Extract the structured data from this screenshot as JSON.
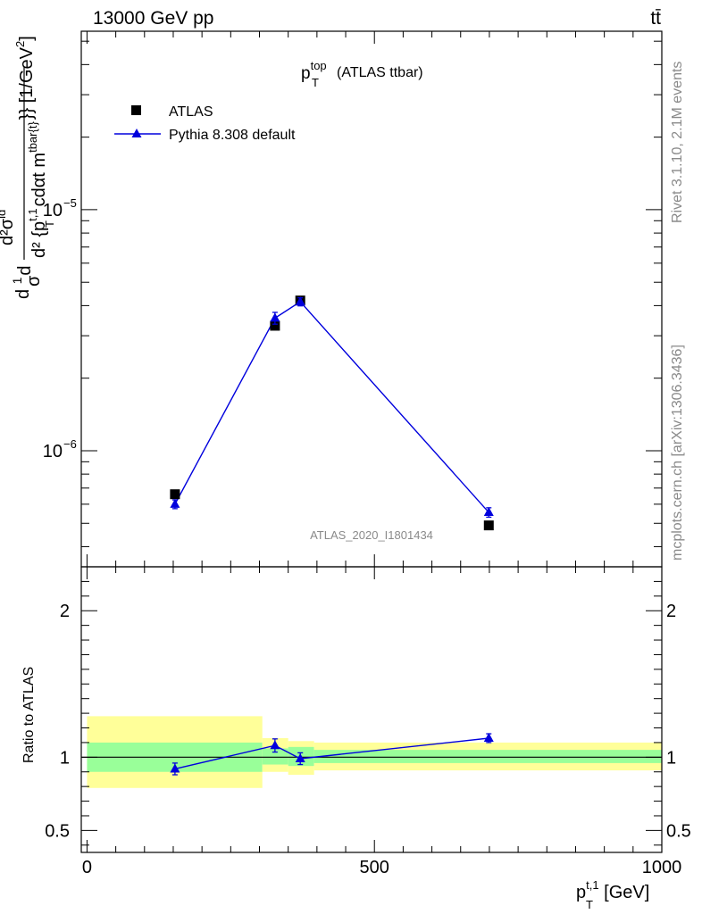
{
  "header": {
    "energy": "13000 GeV pp",
    "process": "tt̄"
  },
  "side": {
    "rivet": "Rivet 3.1.10,  2.1M events",
    "mcplots": "mcplots.cern.ch [arXiv:1306.3436]"
  },
  "colors": {
    "data": "#000000",
    "mc": "#0000dd",
    "band_green": "#99ff99",
    "band_yellow": "#ffff99",
    "watermark": "#8a8a8a"
  },
  "chart_data": [
    {
      "type": "scatter",
      "panel": "main",
      "title_main": "p",
      "title_sup": "top",
      "title_sub": "T",
      "title_tail": "(ATLAS ttbar)",
      "watermark": "ATLAS_2020_I1801434",
      "ylabel": "d¹/σ d²σᴵᵈ / d² {p_T^{t,1} cdαt m^{tbar{t}}} [1/GeV²]",
      "ylabel_parts": {
        "a": "d",
        "b": "1",
        "c": "σ",
        "d": "d",
        "num": "d²σ",
        "num_sup": "id",
        "den": "d² {p",
        "den_sup": "t,1",
        "den_sub": "T",
        "den_tail": "cdαt m",
        "den_tail_sup": "tbar{t}",
        "unit": "}} [1/GeV",
        "unit_sup": "2",
        "unit_end": "]"
      },
      "yscale": "log",
      "ylim": [
        3.3e-07,
        5.5e-05
      ],
      "xlim": [
        -10,
        1000
      ],
      "y_tick_labels": [
        {
          "value": 1e-05,
          "base": "10",
          "exp": "−5"
        },
        {
          "value": 1e-06,
          "base": "10",
          "exp": "−6"
        }
      ],
      "legend": {
        "placement": "top-left",
        "entries": [
          "ATLAS",
          "Pythia 8.308 default"
        ]
      },
      "series": [
        {
          "name": "ATLAS",
          "marker": "square",
          "points": [
            {
              "x": 153,
              "y": 6.6e-07,
              "err": 2e-08
            },
            {
              "x": 327,
              "y": 3.3e-06,
              "err": 8e-08
            },
            {
              "x": 371,
              "y": 4.2e-06,
              "err": 1e-07
            },
            {
              "x": 699,
              "y": 4.9e-07,
              "err": 1e-08
            }
          ]
        },
        {
          "name": "Pythia 8.308 default",
          "marker": "triangle",
          "points": [
            {
              "x": 153,
              "y": 6e-07,
              "err": 2.5e-08
            },
            {
              "x": 327,
              "y": 3.55e-06,
              "err": 2e-07
            },
            {
              "x": 371,
              "y": 4.15e-06,
              "err": 1.6e-07
            },
            {
              "x": 699,
              "y": 5.55e-07,
              "err": 2.5e-08
            }
          ]
        }
      ]
    },
    {
      "type": "line",
      "panel": "ratio",
      "ylabel": "Ratio to ATLAS",
      "xlabel_main": "p",
      "xlabel_sup": "t,1",
      "xlabel_sub": "T",
      "xlabel_tail": " [GeV]",
      "xlim": [
        -10,
        1000
      ],
      "ylim": [
        0.35,
        2.3
      ],
      "x_tick_labels": [
        {
          "value": 0,
          "label": "0"
        },
        {
          "value": 500,
          "label": "500"
        },
        {
          "value": 1000,
          "label": "1000"
        }
      ],
      "y_tick_labels": [
        {
          "value": 0.5,
          "label": "0.5"
        },
        {
          "value": 1,
          "label": "1"
        },
        {
          "value": 2,
          "label": "2"
        }
      ],
      "bands": [
        {
          "x0": 0,
          "x1": 305,
          "green": [
            0.9,
            1.1
          ],
          "yellow": [
            0.79,
            1.28
          ]
        },
        {
          "x0": 305,
          "x1": 350,
          "green": [
            0.95,
            1.06
          ],
          "yellow": [
            0.9,
            1.13
          ]
        },
        {
          "x0": 350,
          "x1": 395,
          "green": [
            0.94,
            1.07
          ],
          "yellow": [
            0.88,
            1.11
          ]
        },
        {
          "x0": 395,
          "x1": 1000,
          "green": [
            0.96,
            1.05
          ],
          "yellow": [
            0.91,
            1.1
          ]
        }
      ],
      "reference": 1,
      "series": [
        {
          "name": "Pythia 8.308 default",
          "points": [
            {
              "x": 153,
              "y": 0.92,
              "err": 0.04
            },
            {
              "x": 327,
              "y": 1.08,
              "err": 0.045
            },
            {
              "x": 371,
              "y": 0.99,
              "err": 0.04
            },
            {
              "x": 699,
              "y": 1.13,
              "err": 0.03
            }
          ]
        }
      ]
    }
  ]
}
